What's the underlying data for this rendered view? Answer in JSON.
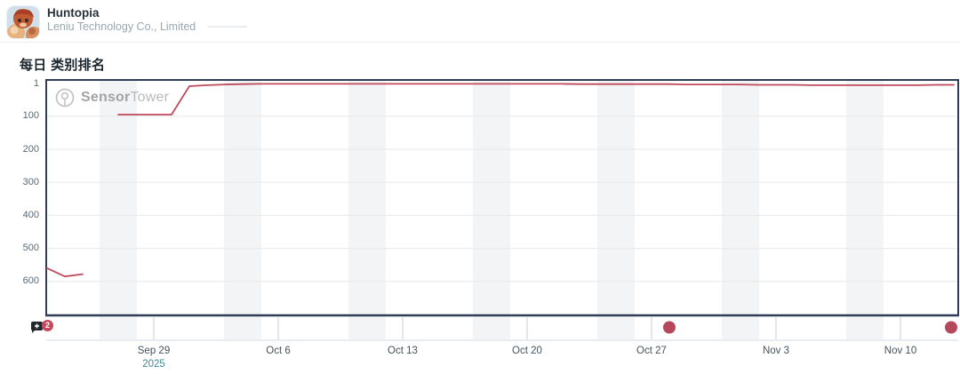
{
  "header": {
    "app_name": "Huntopia",
    "publisher": "Leniu Technology Co., Limited",
    "app_icon": "huntopia-app-icon"
  },
  "chart": {
    "title": "每日 类别排名",
    "watermark": {
      "icon": "sensortower-logo-icon",
      "brand_bold": "Sensor",
      "brand_light": "Tower"
    }
  },
  "chart_data": {
    "type": "line",
    "title": "每日 类别排名",
    "grid": "horizontal",
    "legend": "none",
    "weekend_bands": true,
    "y_axis": {
      "label": "rank",
      "inverted": true,
      "ticks": [
        1,
        100,
        200,
        300,
        400,
        500,
        600
      ],
      "range": [
        1,
        700
      ]
    },
    "x_axis": {
      "tick_labels": [
        "Sep 29",
        "Oct 6",
        "Oct 13",
        "Oct 20",
        "Oct 27",
        "Nov 3",
        "Nov 10"
      ],
      "year_label": "2025"
    },
    "series": [
      {
        "name": "类别排名",
        "color": "#bf4a5c",
        "x": [
          "Sep 23",
          "Sep 24",
          "Sep 25",
          "Sep 26",
          "Sep 27",
          "Sep 28",
          "Sep 29",
          "Sep 30",
          "Oct 1",
          "Oct 2",
          "Oct 3",
          "Oct 4",
          "Oct 5",
          "Oct 6",
          "Oct 7",
          "Oct 8",
          "Oct 9",
          "Oct 10",
          "Oct 11",
          "Oct 12",
          "Oct 13",
          "Oct 14",
          "Oct 15",
          "Oct 16",
          "Oct 17",
          "Oct 18",
          "Oct 19",
          "Oct 20",
          "Oct 21",
          "Oct 22",
          "Oct 23",
          "Oct 24",
          "Oct 25",
          "Oct 26",
          "Oct 27",
          "Oct 28",
          "Oct 29",
          "Oct 30",
          "Oct 31",
          "Nov 1",
          "Nov 2",
          "Nov 3",
          "Nov 4",
          "Nov 5",
          "Nov 6",
          "Nov 7",
          "Nov 8",
          "Nov 9",
          "Nov 10",
          "Nov 11",
          "Nov 12",
          "Nov 13"
        ],
        "values": [
          560,
          585,
          578,
          null,
          95,
          95,
          95,
          95,
          9,
          6,
          4,
          3,
          2,
          2,
          2,
          2,
          2,
          2,
          2,
          2,
          2,
          2,
          2,
          2,
          2,
          2,
          2,
          2,
          2,
          2,
          3,
          3,
          3,
          3,
          3,
          3,
          4,
          4,
          4,
          4,
          5,
          5,
          5,
          6,
          6,
          6,
          6,
          6,
          6,
          6,
          5,
          5
        ]
      }
    ]
  },
  "timeline": {
    "annotation_icon": "comment-plus-icon",
    "badge_count": "2",
    "event_dates": [
      "Oct 28",
      "Nov 13"
    ]
  },
  "colors": {
    "line": "#bf4a5c",
    "event_dot": "#b5495b",
    "badge": "#c5485c",
    "axis": "#2f3d57",
    "gridline": "#e8e8e8",
    "weekend_band": "#f2f4f6",
    "timeline_tick": "#c9cfd6",
    "timeline_border": "#d6dbe0",
    "year_teal": "#3f8591"
  }
}
